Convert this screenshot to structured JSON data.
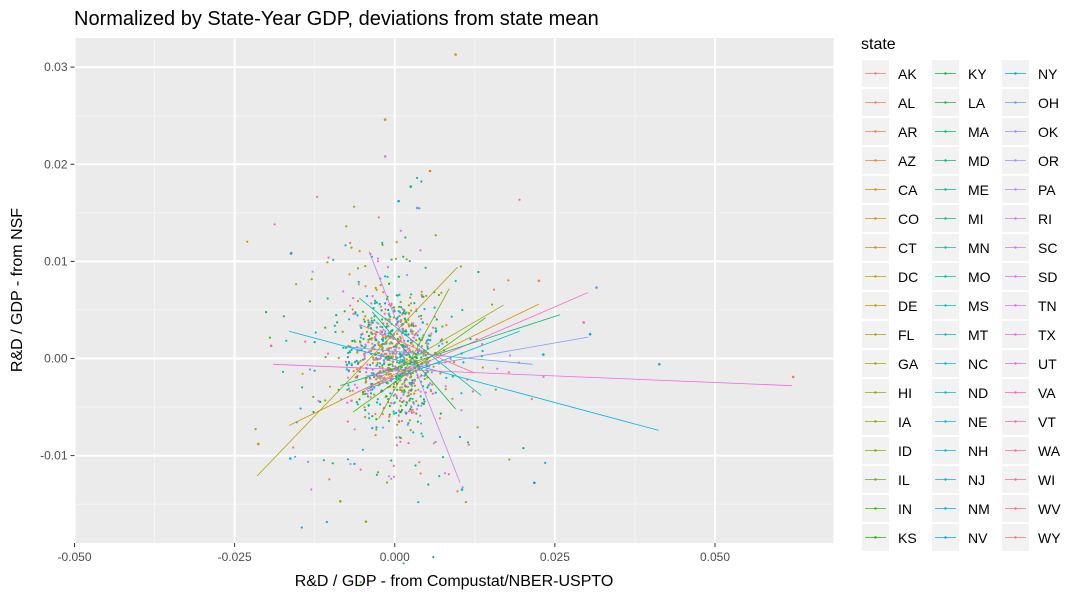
{
  "chart_data": {
    "type": "scatter",
    "title": "Normalized by State-Year GDP, deviations from state mean",
    "xlabel": "R&D / GDP - from Compustat/NBER-USPTO",
    "ylabel": "R&D / GDP - from NSF",
    "xlim": [
      -0.05,
      0.0685
    ],
    "ylim": [
      -0.019,
      0.033
    ],
    "x_ticks": [
      -0.05,
      -0.025,
      0.0,
      0.025,
      0.05
    ],
    "x_tick_labels": [
      "-0.050",
      "-0.025",
      "0.000",
      "0.025",
      "0.050"
    ],
    "y_ticks": [
      -0.01,
      0.0,
      0.01,
      0.02,
      0.03
    ],
    "y_tick_labels": [
      "-0.01",
      "0.00",
      "0.01",
      "0.02",
      "0.03"
    ],
    "grid": true,
    "legend_title": "state",
    "legend_position": "right",
    "states": [
      "AK",
      "AL",
      "AR",
      "AZ",
      "CA",
      "CO",
      "CT",
      "DC",
      "DE",
      "FL",
      "GA",
      "HI",
      "IA",
      "ID",
      "IL",
      "IN",
      "KS",
      "KY",
      "LA",
      "MA",
      "MD",
      "ME",
      "MI",
      "MN",
      "MO",
      "MS",
      "MT",
      "NC",
      "ND",
      "NE",
      "NH",
      "NJ",
      "NM",
      "NV",
      "NY",
      "OH",
      "OK",
      "OR",
      "PA",
      "RI",
      "SC",
      "SD",
      "TN",
      "TX",
      "UT",
      "VA",
      "VT",
      "WA",
      "WI",
      "WV",
      "WY"
    ],
    "colors": [
      "#F8766D",
      "#F47A5E",
      "#EF7F4A",
      "#E98431",
      "#E38900",
      "#DB8E00",
      "#D39200",
      "#C99800",
      "#BF9C00",
      "#B39F00",
      "#A6A300",
      "#99A800",
      "#89AC00",
      "#77AF00",
      "#62B200",
      "#48B500",
      "#1BB800",
      "#00BA38",
      "#00BB4E",
      "#00BD5F",
      "#00BE6F",
      "#00BF7E",
      "#00C08B",
      "#00C199",
      "#00C1A5",
      "#00C0B1",
      "#00BFBD",
      "#00BDC8",
      "#00BBD3",
      "#00B8DD",
      "#00B4E6",
      "#00AFEF",
      "#00A9FF",
      "#00A4FF",
      "#00A0FF",
      "#619CFF",
      "#8497FF",
      "#9F91FF",
      "#B58AFF",
      "#C77CFF",
      "#D573FA",
      "#E26EF7",
      "#EC69EF",
      "#F564E3",
      "#FA62D5",
      "#FE61C6",
      "#FF61B6",
      "#FF63A6",
      "#FF6894",
      "#FC6F83",
      "#F8766D"
    ],
    "highlight_points": [
      {
        "x": 0.0095,
        "y": 0.0313,
        "color": "#C99800"
      },
      {
        "x": -0.0015,
        "y": 0.0246,
        "color": "#D39200"
      },
      {
        "x": -0.0015,
        "y": 0.0208,
        "color": "#D573FA"
      },
      {
        "x": 0.0055,
        "y": 0.0193,
        "color": "#E38900"
      },
      {
        "x": 0.0025,
        "y": 0.0177,
        "color": "#00BE6F"
      },
      {
        "x": 0.0006,
        "y": 0.0162,
        "color": "#00A9FF"
      },
      {
        "x": 0.0035,
        "y": 0.0155,
        "color": "#8497FF"
      },
      {
        "x": -0.0162,
        "y": 0.0108,
        "color": "#00A9FF"
      },
      {
        "x": 0.0315,
        "y": 0.0073,
        "color": "#619CFF"
      },
      {
        "x": 0.0413,
        "y": -0.0006,
        "color": "#00AFEF"
      },
      {
        "x": 0.0622,
        "y": -0.0019,
        "color": "#F8766D"
      },
      {
        "x": 0.0305,
        "y": 0.0025,
        "color": "#00A4FF"
      },
      {
        "x": 0.0225,
        "y": 0.008,
        "color": "#E98431"
      },
      {
        "x": 0.0232,
        "y": 0.0004,
        "color": "#00BFBD"
      },
      {
        "x": -0.0213,
        "y": -0.0088,
        "color": "#D39200"
      },
      {
        "x": -0.0163,
        "y": -0.0103,
        "color": "#00B4E6"
      },
      {
        "x": -0.0045,
        "y": -0.0168,
        "color": "#A6A300"
      },
      {
        "x": -0.0085,
        "y": -0.0147,
        "color": "#89AC00"
      },
      {
        "x": 0.0105,
        "y": -0.0135,
        "color": "#00B8DD"
      },
      {
        "x": 0.0218,
        "y": -0.0128,
        "color": "#00A0FF"
      },
      {
        "x": -0.0193,
        "y": 0.0013,
        "color": "#FF61B6"
      },
      {
        "x": 0.0295,
        "y": 0.0037,
        "color": "#FF63A6"
      }
    ],
    "fit_lines": [
      {
        "x1": -0.0215,
        "y1": -0.0121,
        "x2": 0.0098,
        "y2": 0.0094,
        "color": "#B39F00"
      },
      {
        "x1": -0.0165,
        "y1": -0.0069,
        "x2": 0.0225,
        "y2": 0.0056,
        "color": "#D39200"
      },
      {
        "x1": -0.0165,
        "y1": 0.0028,
        "x2": 0.0412,
        "y2": -0.0074,
        "color": "#00B4E6"
      },
      {
        "x1": -0.019,
        "y1": -0.0006,
        "x2": 0.062,
        "y2": -0.0028,
        "color": "#F564E3"
      },
      {
        "x1": -0.004,
        "y1": 0.011,
        "x2": 0.0102,
        "y2": -0.0128,
        "color": "#C77CFF"
      },
      {
        "x1": -0.006,
        "y1": -0.0035,
        "x2": 0.0302,
        "y2": 0.0068,
        "color": "#FE61C6"
      },
      {
        "x1": -0.0085,
        "y1": -0.0028,
        "x2": 0.0258,
        "y2": 0.0045,
        "color": "#00BD5F"
      },
      {
        "x1": -0.0045,
        "y1": -0.0018,
        "x2": 0.0302,
        "y2": 0.0022,
        "color": "#8497FF"
      },
      {
        "x1": -0.003,
        "y1": -0.0022,
        "x2": 0.017,
        "y2": 0.0055,
        "color": "#A6A300"
      },
      {
        "x1": -0.0055,
        "y1": 0.0062,
        "x2": 0.0135,
        "y2": -0.0038,
        "color": "#00C1A5"
      },
      {
        "x1": -0.0065,
        "y1": -0.0055,
        "x2": 0.0142,
        "y2": 0.0042,
        "color": "#48B500"
      },
      {
        "x1": -0.0035,
        "y1": 0.0048,
        "x2": 0.0095,
        "y2": -0.0052,
        "color": "#00BA38"
      },
      {
        "x1": -0.0075,
        "y1": 0.0012,
        "x2": 0.0215,
        "y2": -0.0006,
        "color": "#619CFF"
      },
      {
        "x1": -0.0025,
        "y1": -0.0062,
        "x2": 0.0085,
        "y2": 0.0072,
        "color": "#77AF00"
      },
      {
        "x1": -0.0055,
        "y1": 0.0035,
        "x2": 0.0125,
        "y2": -0.0015,
        "color": "#FF6894"
      },
      {
        "x1": -0.0045,
        "y1": -0.0032,
        "x2": 0.0195,
        "y2": 0.0028,
        "color": "#00BBD3"
      }
    ]
  }
}
